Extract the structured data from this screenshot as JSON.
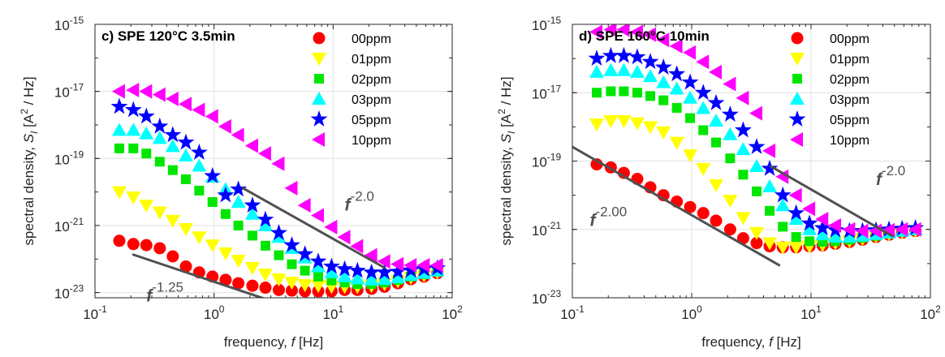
{
  "chart_data": [
    {
      "type": "scatter",
      "title": "c) SPE 120°C 3.5min",
      "xlabel_prefix": "frequency, ",
      "xlabel_var": "f",
      "xlabel_unit": " [Hz]",
      "ylabel_prefix": "spectral density, ",
      "ylabel_var": "S",
      "ylabel_sub": "I",
      "ylabel_unit_a": " [A",
      "ylabel_unit_exp": "2",
      "ylabel_unit_b": " / Hz]",
      "x_scale": "log",
      "y_scale": "log",
      "xlim": [
        0.1,
        100
      ],
      "ylim": [
        7e-24,
        1e-15
      ],
      "x_ticks": [
        {
          "v": 0.1,
          "base": "10",
          "exp": "-1"
        },
        {
          "v": 1,
          "base": "10",
          "exp": "0"
        },
        {
          "v": 10,
          "base": "10",
          "exp": "1"
        },
        {
          "v": 100,
          "base": "10",
          "exp": "2"
        }
      ],
      "y_ticks": [
        {
          "v": 1e-23,
          "base": "10",
          "exp": "-23"
        },
        {
          "v": 1e-21,
          "base": "10",
          "exp": "-21"
        },
        {
          "v": 1e-19,
          "base": "10",
          "exp": "-19"
        },
        {
          "v": 1e-17,
          "base": "10",
          "exp": "-17"
        },
        {
          "v": 1e-15,
          "base": "10",
          "exp": "-15"
        }
      ],
      "grid": true,
      "legend_position": "top-right",
      "series": [
        {
          "name": "00ppm",
          "marker": "circle",
          "color": "#ff0000",
          "x": [
            0.16,
            0.21,
            0.27,
            0.35,
            0.45,
            0.58,
            0.75,
            0.97,
            1.25,
            1.6,
            2.1,
            2.7,
            3.5,
            4.5,
            5.8,
            7.5,
            9.7,
            12.5,
            16,
            21,
            27,
            35,
            45,
            58,
            75
          ],
          "y": [
            3.5e-22,
            2.8e-22,
            2.6e-22,
            2.1e-22,
            1.2e-22,
            6e-23,
            4e-23,
            3e-23,
            2.4e-23,
            1.9e-23,
            1.6e-23,
            1.4e-23,
            1.2e-23,
            1.15e-23,
            1.1e-23,
            1.1e-23,
            1.1e-23,
            1.2e-23,
            1.2e-23,
            1.3e-23,
            1.5e-23,
            1.9e-23,
            2.5e-23,
            3e-23,
            3.8e-23
          ]
        },
        {
          "name": "01ppm",
          "marker": "triangle-down",
          "color": "#ffff00",
          "x": [
            0.16,
            0.21,
            0.27,
            0.35,
            0.45,
            0.58,
            0.75,
            0.97,
            1.25,
            1.6,
            2.1,
            2.7,
            3.5,
            4.5,
            5.8,
            7.5,
            9.7,
            12.5,
            16,
            21,
            27,
            35,
            45,
            58,
            75
          ],
          "y": [
            1e-20,
            7e-21,
            4e-21,
            2.5e-21,
            1.4e-21,
            8e-22,
            4.5e-22,
            2.6e-22,
            1.5e-22,
            9e-23,
            5.5e-23,
            3.5e-23,
            2.5e-23,
            2e-23,
            1.7e-23,
            1.6e-23,
            1.5e-23,
            1.5e-23,
            1.5e-23,
            1.6e-23,
            1.8e-23,
            2.2e-23,
            2.8e-23,
            3.3e-23,
            4e-23
          ]
        },
        {
          "name": "02ppm",
          "marker": "square",
          "color": "#00e600",
          "x": [
            0.16,
            0.21,
            0.27,
            0.35,
            0.45,
            0.58,
            0.75,
            0.97,
            1.25,
            1.6,
            2.1,
            2.7,
            3.5,
            4.5,
            5.8,
            7.5,
            9.7,
            12.5,
            16,
            21,
            27,
            35,
            45,
            58,
            75
          ],
          "y": [
            2e-19,
            2e-19,
            1.4e-19,
            8e-20,
            4.5e-20,
            2.4e-20,
            1.1e-20,
            5e-21,
            2.2e-21,
            1e-21,
            5e-22,
            2.5e-22,
            1.3e-22,
            7e-23,
            4.5e-23,
            3e-23,
            2.3e-23,
            2e-23,
            1.8e-23,
            1.8e-23,
            2e-23,
            2.4e-23,
            3e-23,
            3.5e-23,
            4.2e-23
          ]
        },
        {
          "name": "03ppm",
          "marker": "triangle-up",
          "color": "#00ffff",
          "x": [
            0.16,
            0.21,
            0.27,
            0.35,
            0.45,
            0.58,
            0.75,
            0.97,
            1.25,
            1.6,
            2.1,
            2.7,
            3.5,
            4.5,
            5.8,
            7.5,
            9.7,
            12.5,
            16,
            21,
            27,
            35,
            45,
            58,
            75
          ],
          "y": [
            7e-19,
            7e-19,
            5.5e-19,
            4e-19,
            2.3e-19,
            1.2e-19,
            6e-20,
            2.8e-20,
            1.2e-20,
            5e-21,
            2.2e-21,
            1e-21,
            4.5e-22,
            2.1e-22,
            1.1e-22,
            6e-23,
            4e-23,
            3e-23,
            2.6e-23,
            2.4e-23,
            2.5e-23,
            2.8e-23,
            3.3e-23,
            3.8e-23,
            4.5e-23
          ]
        },
        {
          "name": "05ppm",
          "marker": "star",
          "color": "#0000ff",
          "x": [
            0.16,
            0.21,
            0.27,
            0.35,
            0.45,
            0.58,
            0.75,
            0.97,
            1.25,
            1.6,
            2.1,
            2.7,
            3.5,
            4.5,
            5.8,
            7.5,
            9.7,
            12.5,
            16,
            21,
            27,
            35,
            45,
            58,
            75
          ],
          "y": [
            3.5e-18,
            2.8e-18,
            1.8e-18,
            9e-19,
            5e-19,
            3e-19,
            1.5e-19,
            3e-20,
            8e-21,
            1.2e-20,
            4e-21,
            1.5e-21,
            6e-22,
            2.6e-22,
            1.4e-22,
            8.5e-23,
            6e-23,
            5e-23,
            4.5e-23,
            4e-23,
            4e-23,
            4.2e-23,
            4.6e-23,
            5e-23,
            5.3e-23
          ]
        },
        {
          "name": "10ppm",
          "marker": "triangle-left",
          "color": "#ff00ff",
          "x": [
            0.16,
            0.21,
            0.27,
            0.35,
            0.45,
            0.58,
            0.75,
            0.97,
            1.25,
            1.6,
            2.1,
            2.7,
            3.5,
            4.5,
            5.8,
            7.5,
            9.7,
            12.5,
            16,
            21,
            27,
            35,
            45,
            58,
            75
          ],
          "y": [
            1e-17,
            1.1e-17,
            1e-17,
            8e-18,
            6e-18,
            4.2e-18,
            2.8e-18,
            1.8e-18,
            9e-19,
            5e-19,
            2.4e-19,
            1.4e-19,
            7e-20,
            1.3e-20,
            4e-21,
            2e-21,
            9e-22,
            4.5e-22,
            2.4e-22,
            1.3e-22,
            8.5e-23,
            7e-23,
            6.5e-23,
            6.5e-23,
            6.5e-23
          ]
        }
      ],
      "annotations": [
        {
          "base": "f",
          "exp": "-2.0",
          "x": 12.5,
          "y": 2.8e-21,
          "line": [
            [
              1.75,
              1.3e-20
            ],
            [
              27,
              5.5e-23
            ]
          ]
        },
        {
          "base": "f",
          "exp": "-1.25",
          "x": 0.27,
          "y": 5.5e-24,
          "line": [
            [
              0.21,
              1.35e-22
            ],
            [
              4.4,
              3.6e-24
            ]
          ]
        }
      ]
    },
    {
      "type": "scatter",
      "title": "d) SPE 160°C 10min",
      "xlabel_prefix": "frequency, ",
      "xlabel_var": "f",
      "xlabel_unit": " [Hz]",
      "ylabel_prefix": "spectral density, ",
      "ylabel_var": "S",
      "ylabel_sub": "I",
      "ylabel_unit_a": " [A",
      "ylabel_unit_exp": "2",
      "ylabel_unit_b": " / Hz]",
      "x_scale": "log",
      "y_scale": "log",
      "xlim": [
        0.1,
        100
      ],
      "ylim": [
        1e-23,
        1e-15
      ],
      "x_ticks": [
        {
          "v": 0.1,
          "base": "10",
          "exp": "-1"
        },
        {
          "v": 1,
          "base": "10",
          "exp": "0"
        },
        {
          "v": 10,
          "base": "10",
          "exp": "1"
        },
        {
          "v": 100,
          "base": "10",
          "exp": "2"
        }
      ],
      "y_ticks": [
        {
          "v": 1e-23,
          "base": "10",
          "exp": "-23"
        },
        {
          "v": 1e-21,
          "base": "10",
          "exp": "-21"
        },
        {
          "v": 1e-19,
          "base": "10",
          "exp": "-19"
        },
        {
          "v": 1e-17,
          "base": "10",
          "exp": "-17"
        },
        {
          "v": 1e-15,
          "base": "10",
          "exp": "-15"
        }
      ],
      "grid": true,
      "legend_position": "top-right",
      "series": [
        {
          "name": "00ppm",
          "marker": "circle",
          "color": "#ff0000",
          "x": [
            0.16,
            0.21,
            0.27,
            0.35,
            0.45,
            0.58,
            0.75,
            0.97,
            1.25,
            1.6,
            2.1,
            2.7,
            3.5,
            4.5,
            5.8,
            7.5,
            9.7,
            12.5,
            16,
            21,
            27,
            35,
            45,
            58,
            75
          ],
          "y": [
            8e-20,
            6.5e-20,
            4.5e-20,
            3e-20,
            1.7e-20,
            1e-20,
            6.5e-21,
            4.5e-21,
            3e-21,
            1.8e-21,
            1e-21,
            5.5e-22,
            4e-22,
            3.2e-22,
            3e-22,
            3e-22,
            3.2e-22,
            3.4e-22,
            3.8e-22,
            4.3e-22,
            5e-22,
            6e-22,
            7e-22,
            8e-22,
            9e-22
          ]
        },
        {
          "name": "01ppm",
          "marker": "triangle-down",
          "color": "#ffff00",
          "x": [
            0.16,
            0.21,
            0.27,
            0.35,
            0.45,
            0.58,
            0.75,
            0.97,
            1.25,
            1.6,
            2.1,
            2.7,
            3.5,
            4.5,
            5.8,
            7.5,
            9.7,
            12.5,
            16,
            21,
            27,
            35,
            45,
            58,
            75
          ],
          "y": [
            1.2e-18,
            1.5e-18,
            1.5e-18,
            1.3e-18,
            1e-18,
            7e-19,
            3.5e-19,
            1.5e-19,
            6e-20,
            2e-20,
            7e-21,
            2.2e-21,
            8e-22,
            4e-22,
            3e-22,
            3e-22,
            3.2e-22,
            3.5e-22,
            4e-22,
            4.6e-22,
            5.3e-22,
            6.3e-22,
            7.3e-22,
            8.3e-22,
            9.3e-22
          ]
        },
        {
          "name": "02ppm",
          "marker": "square",
          "color": "#00e600",
          "x": [
            0.16,
            0.21,
            0.27,
            0.35,
            0.45,
            0.58,
            0.75,
            0.97,
            1.25,
            1.6,
            2.1,
            2.7,
            3.5,
            4.5,
            5.8,
            7.5,
            9.7,
            12.5,
            16,
            21,
            27,
            35,
            45,
            58,
            75
          ],
          "y": [
            1e-17,
            1.1e-17,
            1.1e-17,
            1e-17,
            8e-18,
            6e-18,
            3.6e-18,
            1.8e-18,
            8e-19,
            3.5e-19,
            1.2e-19,
            4e-20,
            1.3e-20,
            3.5e-21,
            1.2e-21,
            6e-22,
            4.5e-22,
            4.3e-22,
            4.5e-22,
            5e-22,
            5.7e-22,
            6.5e-22,
            7.5e-22,
            8.5e-22,
            9.5e-22
          ]
        },
        {
          "name": "03ppm",
          "marker": "triangle-up",
          "color": "#00ffff",
          "x": [
            0.16,
            0.21,
            0.27,
            0.35,
            0.45,
            0.58,
            0.75,
            0.97,
            1.25,
            1.6,
            2.1,
            2.7,
            3.5,
            4.5,
            5.8,
            7.5,
            9.7,
            12.5,
            16,
            21,
            27,
            35,
            45,
            58,
            75
          ],
          "y": [
            4e-17,
            4.5e-17,
            4.5e-17,
            4e-17,
            3e-17,
            2e-17,
            1.3e-17,
            7e-18,
            3.5e-18,
            1.5e-18,
            6e-19,
            2.2e-19,
            7e-20,
            1.8e-20,
            5e-21,
            2e-21,
            1e-21,
            7e-22,
            6e-22,
            6e-22,
            6.5e-22,
            7.2e-22,
            8e-22,
            9e-22,
            1e-21
          ]
        },
        {
          "name": "05ppm",
          "marker": "star",
          "color": "#0000ff",
          "x": [
            0.16,
            0.21,
            0.27,
            0.35,
            0.45,
            0.58,
            0.75,
            0.97,
            1.25,
            1.6,
            2.1,
            2.7,
            3.5,
            4.5,
            5.8,
            7.5,
            9.7,
            12.5,
            16,
            21,
            27,
            35,
            45,
            58,
            75
          ],
          "y": [
            1e-16,
            1.2e-16,
            1.2e-16,
            1.1e-16,
            8e-17,
            5.5e-17,
            3.5e-17,
            2e-17,
            1e-17,
            5e-18,
            2.3e-18,
            8e-19,
            2.6e-19,
            6e-20,
            1e-20,
            3e-21,
            1.5e-21,
            1.1e-21,
            9.5e-22,
            9e-22,
            9e-22,
            9.5e-22,
            1e-21,
            1.05e-21,
            1.1e-21
          ]
        },
        {
          "name": "10ppm",
          "marker": "triangle-left",
          "color": "#ff00ff",
          "x": [
            0.16,
            0.21,
            0.27,
            0.35,
            0.45,
            0.58,
            0.75,
            0.97,
            1.25,
            1.6,
            2.1,
            2.7,
            3.5,
            4.5,
            5.8,
            7.5,
            9.7,
            12.5,
            16,
            21,
            27,
            35,
            45,
            58,
            75
          ],
          "y": [
            6e-16,
            7e-16,
            7e-16,
            6e-16,
            5e-16,
            3.5e-16,
            2.3e-16,
            1.5e-16,
            8e-17,
            4e-17,
            1.8e-17,
            7e-18,
            2.5e-18,
            2e-19,
            3.5e-20,
            1e-20,
            4e-21,
            2e-21,
            1.3e-21,
            1e-21,
            9e-22,
            9e-22,
            9.5e-22,
            1e-21,
            1e-21
          ]
        }
      ],
      "annotations": [
        {
          "base": "f",
          "exp": "-2.0",
          "x": 35,
          "y": 2e-20,
          "line": [
            [
              4.6,
              7e-20
            ],
            [
              48,
              6.4e-22
            ]
          ]
        },
        {
          "base": "f",
          "exp": "-2.00",
          "x": 0.14,
          "y": 1.25e-21,
          "line": [
            [
              0.1,
              2.6e-19
            ],
            [
              5.4,
              9e-23
            ]
          ]
        }
      ]
    }
  ]
}
